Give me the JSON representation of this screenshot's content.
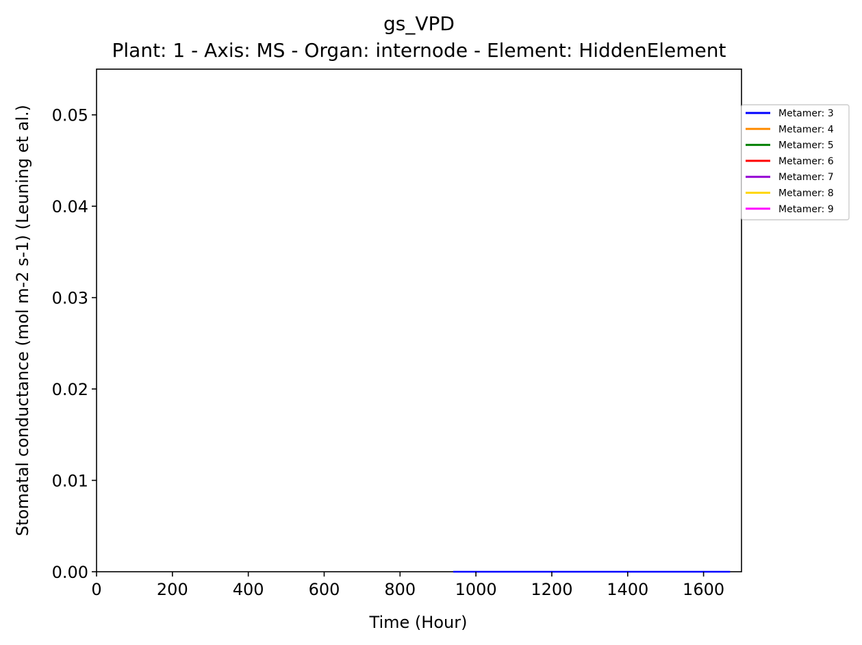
{
  "chart_data": {
    "type": "line",
    "title": "gs_VPD",
    "subtitle": "Plant: 1 - Axis: MS - Organ: internode - Element: HiddenElement",
    "xlabel": "Time (Hour)",
    "ylabel": "Stomatal conductance (mol m-2 s-1) (Leuning et al.)",
    "xlim": [
      0,
      1700
    ],
    "ylim": [
      0,
      0.055
    ],
    "xticks": [
      0,
      200,
      400,
      600,
      800,
      1000,
      1200,
      1400,
      1600
    ],
    "yticks": [
      0.0,
      0.01,
      0.02,
      0.03,
      0.04,
      0.05
    ],
    "xtick_labels": [
      "0",
      "200",
      "400",
      "600",
      "800",
      "1000",
      "1200",
      "1400",
      "1600"
    ],
    "ytick_labels": [
      "0.00",
      "0.01",
      "0.02",
      "0.03",
      "0.04",
      "0.05"
    ],
    "grid": false,
    "legend_position": "outside-right-top",
    "series": [
      {
        "name": "Metamer: 3",
        "color": "#0000ff",
        "x": [
          940,
          1670
        ],
        "y": [
          0,
          0
        ]
      },
      {
        "name": "Metamer: 4",
        "color": "#ff8c00",
        "x": [],
        "y": []
      },
      {
        "name": "Metamer: 5",
        "color": "#008000",
        "x": [],
        "y": []
      },
      {
        "name": "Metamer: 6",
        "color": "#ff0000",
        "x": [],
        "y": []
      },
      {
        "name": "Metamer: 7",
        "color": "#9400d3",
        "x": [],
        "y": []
      },
      {
        "name": "Metamer: 8",
        "color": "#ffd700",
        "x": [],
        "y": []
      },
      {
        "name": "Metamer: 9",
        "color": "#ff00ff",
        "x": [],
        "y": []
      }
    ]
  }
}
